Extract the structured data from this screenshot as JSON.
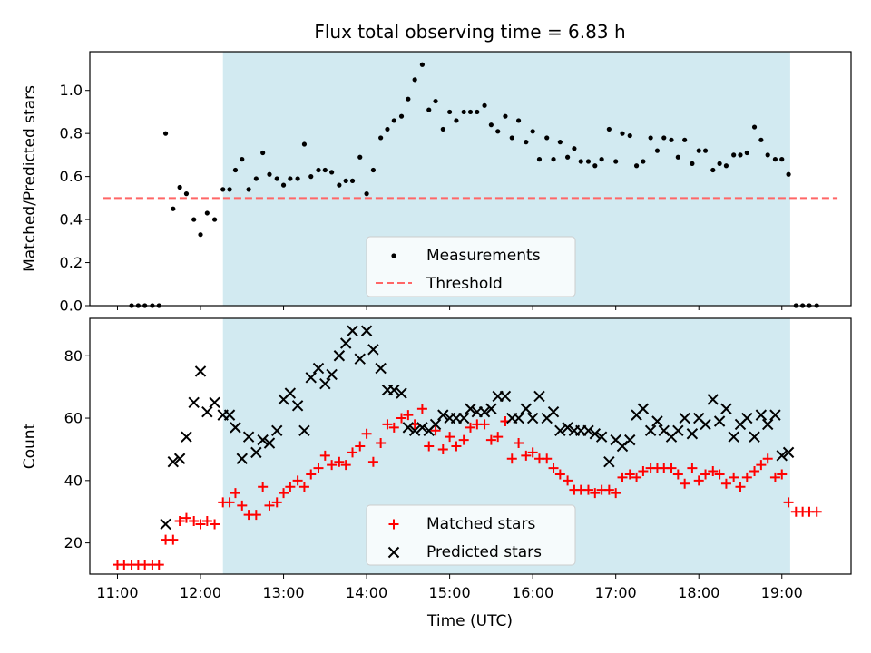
{
  "chart_data": {
    "title": "Flux total observing time = 6.83 h",
    "xlabel": "Time (UTC)",
    "xlim": [
      10.667,
      19.833
    ],
    "xticks": [
      11,
      12,
      13,
      14,
      15,
      16,
      17,
      18,
      19
    ],
    "xtick_labels": [
      "11:00",
      "12:00",
      "13:00",
      "14:00",
      "15:00",
      "16:00",
      "17:00",
      "18:00",
      "19:00"
    ],
    "observing_window": [
      12.27,
      19.1
    ],
    "shade_color": "#add8e6",
    "panels": [
      {
        "type": "scatter",
        "ylabel": "Matched/Predicted stars",
        "ylim": [
          0,
          1.18
        ],
        "yticks": [
          0.0,
          0.2,
          0.4,
          0.6,
          0.8,
          1.0
        ],
        "ytick_labels": [
          "0.0",
          "0.2",
          "0.4",
          "0.6",
          "0.8",
          "1.0"
        ],
        "legend": {
          "placement": "lower center",
          "entries": [
            "Measurements",
            "Threshold"
          ]
        },
        "series": [
          {
            "name": "Measurements",
            "marker": "dot",
            "color": "#000000",
            "x": [
              11.17,
              11.25,
              11.33,
              11.42,
              11.5,
              11.58,
              11.67,
              11.75,
              11.83,
              11.92,
              12.0,
              12.08,
              12.17,
              12.27,
              12.35,
              12.42,
              12.5,
              12.58,
              12.67,
              12.75,
              12.83,
              12.92,
              13.0,
              13.08,
              13.17,
              13.25,
              13.33,
              13.42,
              13.5,
              13.58,
              13.67,
              13.75,
              13.83,
              13.92,
              14.0,
              14.08,
              14.17,
              14.25,
              14.33,
              14.42,
              14.5,
              14.58,
              14.67,
              14.75,
              14.83,
              14.92,
              15.0,
              15.08,
              15.17,
              15.25,
              15.33,
              15.42,
              15.5,
              15.58,
              15.67,
              15.75,
              15.83,
              15.92,
              16.0,
              16.08,
              16.17,
              16.25,
              16.33,
              16.42,
              16.5,
              16.58,
              16.67,
              16.75,
              16.83,
              16.92,
              17.0,
              17.08,
              17.17,
              17.25,
              17.33,
              17.42,
              17.5,
              17.58,
              17.67,
              17.75,
              17.83,
              17.92,
              18.0,
              18.08,
              18.17,
              18.25,
              18.33,
              18.42,
              18.5,
              18.58,
              18.67,
              18.75,
              18.83,
              18.92,
              19.0,
              19.08,
              19.17,
              19.25,
              19.33,
              19.42
            ],
            "y": [
              0.0,
              0.0,
              0.0,
              0.0,
              0.0,
              0.8,
              0.45,
              0.55,
              0.52,
              0.4,
              0.33,
              0.43,
              0.4,
              0.54,
              0.54,
              0.63,
              0.68,
              0.54,
              0.59,
              0.71,
              0.61,
              0.59,
              0.56,
              0.59,
              0.59,
              0.75,
              0.6,
              0.63,
              0.63,
              0.62,
              0.56,
              0.58,
              0.58,
              0.69,
              0.52,
              0.63,
              0.78,
              0.82,
              0.86,
              0.88,
              0.96,
              1.05,
              1.12,
              0.91,
              0.95,
              0.82,
              0.9,
              0.86,
              0.9,
              0.9,
              0.9,
              0.93,
              0.84,
              0.81,
              0.88,
              0.78,
              0.86,
              0.76,
              0.81,
              0.68,
              0.78,
              0.68,
              0.76,
              0.69,
              0.73,
              0.67,
              0.67,
              0.65,
              0.68,
              0.82,
              0.67,
              0.8,
              0.79,
              0.65,
              0.67,
              0.78,
              0.72,
              0.78,
              0.77,
              0.69,
              0.77,
              0.66,
              0.72,
              0.72,
              0.63,
              0.66,
              0.65,
              0.7,
              0.7,
              0.71,
              0.83,
              0.77,
              0.7,
              0.68,
              0.68,
              0.61,
              0.0,
              0.0,
              0.0,
              0.0
            ]
          },
          {
            "name": "Threshold",
            "type": "line",
            "style": "dashed",
            "color": "#ff6666",
            "x": [
              10.83,
              19.67
            ],
            "y": [
              0.5,
              0.5
            ]
          }
        ]
      },
      {
        "type": "scatter",
        "ylabel": "Count",
        "ylim": [
          10,
          92
        ],
        "yticks": [
          20,
          40,
          60,
          80
        ],
        "ytick_labels": [
          "20",
          "40",
          "60",
          "80"
        ],
        "legend": {
          "placement": "lower center",
          "entries": [
            "Matched stars",
            "Predicted stars"
          ]
        },
        "series": [
          {
            "name": "Matched stars",
            "marker": "plus",
            "color": "#ff0000",
            "x": [
              11.0,
              11.08,
              11.17,
              11.25,
              11.33,
              11.42,
              11.5,
              11.58,
              11.67,
              11.75,
              11.83,
              11.92,
              12.0,
              12.08,
              12.17,
              12.27,
              12.35,
              12.42,
              12.5,
              12.58,
              12.67,
              12.75,
              12.83,
              12.92,
              13.0,
              13.08,
              13.17,
              13.25,
              13.33,
              13.42,
              13.5,
              13.58,
              13.67,
              13.75,
              13.83,
              13.92,
              14.0,
              14.08,
              14.17,
              14.25,
              14.33,
              14.42,
              14.5,
              14.58,
              14.67,
              14.75,
              14.83,
              14.92,
              15.0,
              15.08,
              15.17,
              15.25,
              15.33,
              15.42,
              15.5,
              15.58,
              15.67,
              15.75,
              15.83,
              15.92,
              16.0,
              16.08,
              16.17,
              16.25,
              16.33,
              16.42,
              16.5,
              16.58,
              16.67,
              16.75,
              16.83,
              16.92,
              17.0,
              17.08,
              17.17,
              17.25,
              17.33,
              17.42,
              17.5,
              17.58,
              17.67,
              17.75,
              17.83,
              17.92,
              18.0,
              18.08,
              18.17,
              18.25,
              18.33,
              18.42,
              18.5,
              18.58,
              18.67,
              18.75,
              18.83,
              18.92,
              19.0,
              19.08,
              19.17,
              19.25,
              19.33,
              19.42
            ],
            "y": [
              13,
              13,
              13,
              13,
              13,
              13,
              13,
              21,
              21,
              27,
              28,
              27,
              26,
              27,
              26,
              33,
              33,
              36,
              32,
              29,
              29,
              38,
              32,
              33,
              36,
              38,
              40,
              38,
              42,
              44,
              48,
              45,
              46,
              45,
              49,
              51,
              55,
              46,
              52,
              58,
              57,
              60,
              61,
              58,
              63,
              51,
              56,
              50,
              54,
              51,
              53,
              57,
              58,
              58,
              53,
              54,
              59,
              47,
              52,
              48,
              49,
              47,
              47,
              44,
              42,
              40,
              37,
              37,
              37,
              36,
              37,
              37,
              36,
              41,
              42,
              41,
              43,
              44,
              44,
              44,
              44,
              42,
              39,
              44,
              40,
              42,
              43,
              42,
              39,
              41,
              38,
              41,
              43,
              45,
              47,
              41,
              42,
              33,
              30,
              30,
              30,
              30
            ]
          },
          {
            "name": "Predicted stars",
            "marker": "x",
            "color": "#000000",
            "x": [
              11.58,
              11.67,
              11.75,
              11.83,
              11.92,
              12.0,
              12.08,
              12.17,
              12.27,
              12.35,
              12.42,
              12.5,
              12.58,
              12.67,
              12.75,
              12.83,
              12.92,
              13.0,
              13.08,
              13.17,
              13.25,
              13.33,
              13.42,
              13.5,
              13.58,
              13.67,
              13.75,
              13.83,
              13.92,
              14.0,
              14.08,
              14.17,
              14.25,
              14.33,
              14.42,
              14.5,
              14.58,
              14.67,
              14.75,
              14.83,
              14.92,
              15.0,
              15.08,
              15.17,
              15.25,
              15.33,
              15.42,
              15.5,
              15.58,
              15.67,
              15.75,
              15.83,
              15.92,
              16.0,
              16.08,
              16.17,
              16.25,
              16.33,
              16.42,
              16.5,
              16.58,
              16.67,
              16.75,
              16.83,
              16.92,
              17.0,
              17.08,
              17.17,
              17.25,
              17.33,
              17.42,
              17.5,
              17.58,
              17.67,
              17.75,
              17.83,
              17.92,
              18.0,
              18.08,
              18.17,
              18.25,
              18.33,
              18.42,
              18.5,
              18.58,
              18.67,
              18.75,
              18.83,
              18.92,
              19.0,
              19.08
            ],
            "y": [
              26,
              46,
              47,
              54,
              65,
              75,
              62,
              65,
              61,
              61,
              57,
              47,
              54,
              49,
              53,
              52,
              56,
              66,
              68,
              64,
              56,
              73,
              76,
              71,
              74,
              80,
              84,
              88,
              79,
              88,
              82,
              76,
              69,
              69,
              68,
              57,
              56,
              57,
              56,
              58,
              61,
              60,
              60,
              60,
              63,
              62,
              62,
              63,
              67,
              67,
              60,
              60,
              63,
              60,
              67,
              60,
              62,
              56,
              57,
              56,
              56,
              56,
              55,
              54,
              46,
              53,
              51,
              53,
              61,
              63,
              56,
              59,
              56,
              54,
              56,
              60,
              55,
              60,
              58,
              66,
              59,
              63,
              54,
              58,
              60,
              54,
              61,
              58,
              61,
              48,
              49
            ]
          }
        ]
      }
    ]
  }
}
